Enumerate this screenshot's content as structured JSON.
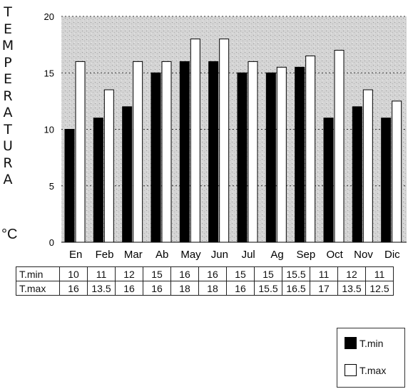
{
  "chart_data": {
    "type": "bar",
    "ylabel": "TEMPERATURA",
    "unit": "°C",
    "ylim": [
      0,
      20
    ],
    "yticks": [
      0,
      5,
      10,
      15,
      20
    ],
    "grid": true,
    "categories": [
      "En",
      "Feb",
      "Mar",
      "Ab",
      "May",
      "Jun",
      "Jul",
      "Ag",
      "Sep",
      "Oct",
      "Nov",
      "Dic"
    ],
    "series": [
      {
        "name": "T.min",
        "color": "#000000",
        "values": [
          10,
          11,
          12,
          15,
          16,
          16,
          15,
          15,
          15.5,
          11,
          12,
          11
        ]
      },
      {
        "name": "T.max",
        "color": "#ffffff",
        "values": [
          16,
          13.5,
          16,
          16,
          18,
          18,
          16,
          15.5,
          16.5,
          17,
          13.5,
          12.5
        ]
      }
    ],
    "table": {
      "row_labels": [
        "T.min",
        "T.max"
      ],
      "rows": [
        [
          "10",
          "11",
          "12",
          "15",
          "16",
          "16",
          "15",
          "15",
          "15.5",
          "11",
          "12",
          "11"
        ],
        [
          "16",
          "13.5",
          "16",
          "16",
          "18",
          "18",
          "16",
          "15.5",
          "16.5",
          "17",
          "13.5",
          "12.5"
        ]
      ]
    },
    "legend": {
      "position": "bottom-right",
      "entries": [
        "T.min",
        "T.max"
      ]
    }
  }
}
